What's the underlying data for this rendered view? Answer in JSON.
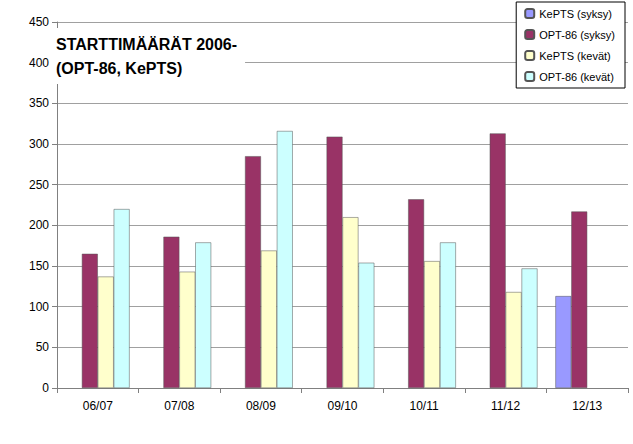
{
  "chart_data": {
    "type": "bar",
    "title": "STARTTIMÄÄRÄT 2006-\n(OPT-86, KePTS)",
    "categories": [
      "06/07",
      "07/08",
      "08/09",
      "09/10",
      "10/11",
      "11/12",
      "12/13"
    ],
    "series": [
      {
        "name": "KePTS (syksy)",
        "color": "#9999ff",
        "values": [
          null,
          null,
          null,
          null,
          null,
          null,
          113
        ]
      },
      {
        "name": "OPT-86 (syksy)",
        "color": "#993366",
        "values": [
          165,
          186,
          285,
          309,
          232,
          313,
          217
        ]
      },
      {
        "name": "KePTS (kevät)",
        "color": "#ffffcc",
        "values": [
          137,
          143,
          169,
          210,
          156,
          118,
          null
        ]
      },
      {
        "name": "OPT-86 (kevät)",
        "color": "#ccffff",
        "values": [
          220,
          179,
          316,
          154,
          179,
          147,
          null
        ]
      }
    ],
    "ylim": [
      0,
      450
    ],
    "yticks": [
      0,
      50,
      100,
      150,
      200,
      250,
      300,
      350,
      400,
      450
    ],
    "grid": true,
    "legend": "top-right"
  }
}
